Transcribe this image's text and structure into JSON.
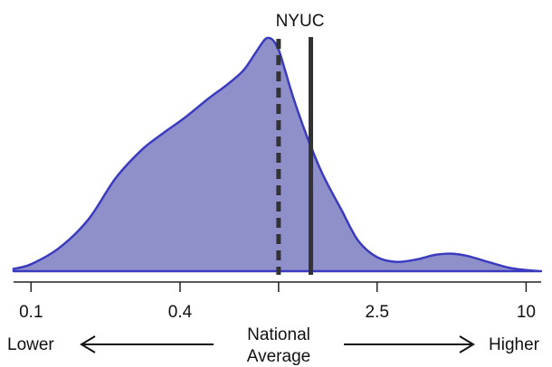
{
  "chart_data": {
    "type": "area",
    "title": "",
    "xlabel": "",
    "ylabel": "",
    "x_scale": "log",
    "x_range": [
      0.085,
      11.5
    ],
    "x_tick_values": [
      0.1,
      0.4,
      1,
      2.5,
      10
    ],
    "x_tick_labels": [
      "0.1",
      "0.4",
      "",
      "2.5",
      "10"
    ],
    "series": [
      {
        "fill_color": "#8f8fca",
        "line_color": "#3b3bbf",
        "x": [
          0.085,
          0.1,
          0.13,
          0.17,
          0.22,
          0.28,
          0.34,
          0.42,
          0.52,
          0.62,
          0.72,
          0.8,
          0.86,
          0.9,
          0.95,
          1.0,
          1.05,
          1.15,
          1.3,
          1.5,
          1.8,
          2.1,
          2.5,
          3.0,
          3.6,
          4.3,
          5.0,
          5.8,
          7.0,
          8.5,
          10.0,
          11.5
        ],
        "y": [
          0.01,
          0.03,
          0.1,
          0.22,
          0.4,
          0.52,
          0.59,
          0.66,
          0.74,
          0.8,
          0.86,
          0.93,
          0.98,
          1.0,
          0.99,
          0.95,
          0.88,
          0.74,
          0.58,
          0.42,
          0.26,
          0.13,
          0.06,
          0.04,
          0.05,
          0.07,
          0.075,
          0.065,
          0.04,
          0.015,
          0.005,
          0.0
        ]
      }
    ],
    "reference_lines": [
      {
        "id": "national-average",
        "x": 1.0,
        "style": "dashed"
      },
      {
        "id": "nyuc",
        "x": 1.35,
        "style": "solid",
        "label": "NYUC"
      }
    ],
    "annotations": {
      "left": "Lower",
      "center_line1": "National",
      "center_line2": "Average",
      "right": "Higher"
    },
    "grid": false,
    "legend": "none"
  }
}
